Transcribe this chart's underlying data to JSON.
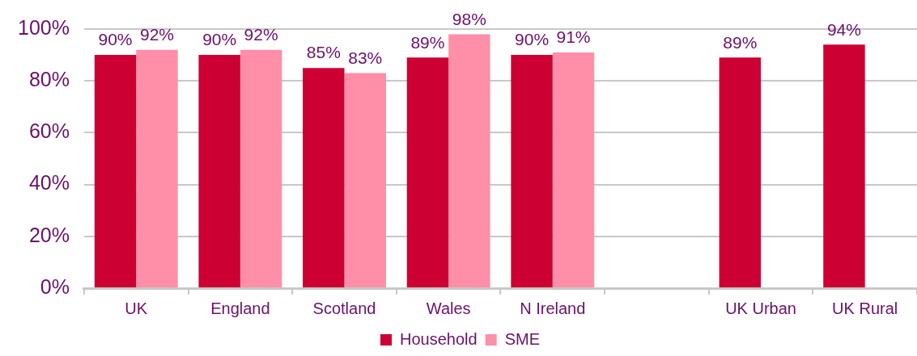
{
  "chart_data": {
    "type": "bar",
    "categories": [
      "UK",
      "England",
      "Scotland",
      "Wales",
      "N Ireland",
      null,
      "UK Urban",
      "UK Rural"
    ],
    "series": [
      {
        "name": "Household",
        "color": "#cc0033",
        "values": [
          90,
          90,
          85,
          89,
          90,
          null,
          89,
          94
        ],
        "value_labels": [
          "90%",
          "90%",
          "85%",
          "89%",
          "90%",
          null,
          "89%",
          "94%"
        ]
      },
      {
        "name": "SME",
        "color": "#ff8fa9",
        "values": [
          92,
          92,
          83,
          98,
          91,
          null,
          null,
          null
        ],
        "value_labels": [
          "92%",
          "92%",
          "83%",
          "98%",
          "91%",
          null,
          null,
          null
        ]
      }
    ],
    "ylim": [
      0,
      100
    ],
    "yticks": [
      {
        "value": 0,
        "label": "0%"
      },
      {
        "value": 20,
        "label": "20%"
      },
      {
        "value": 40,
        "label": "40%"
      },
      {
        "value": 60,
        "label": "60%"
      },
      {
        "value": 80,
        "label": "80%"
      },
      {
        "value": 100,
        "label": "100%"
      }
    ],
    "grid": "y",
    "legend": "bottom"
  }
}
